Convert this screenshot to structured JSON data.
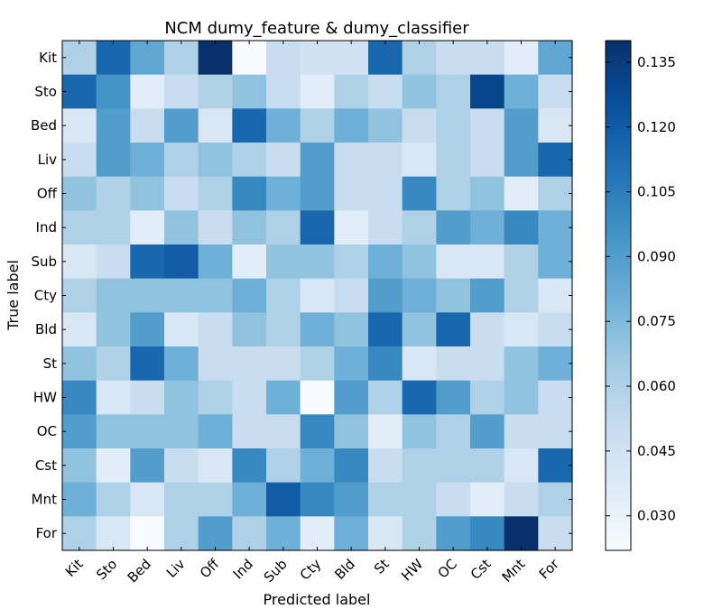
{
  "chart_data": {
    "type": "heatmap",
    "title": "NCM  dumy_feature & dumy_classifier",
    "xlabel": "Predicted label",
    "ylabel": "True label",
    "categories": [
      "Kit",
      "Sto",
      "Bed",
      "Liv",
      "Off",
      "Ind",
      "Sub",
      "Cty",
      "Bld",
      "St",
      "HW",
      "OC",
      "Cst",
      "Mnt",
      "For"
    ],
    "colorbar": {
      "min": 0.022,
      "max": 0.14,
      "ticks": [
        "0.030",
        "0.045",
        "0.060",
        "0.075",
        "0.090",
        "0.105",
        "0.120",
        "0.135"
      ],
      "colormap": "Blues"
    },
    "values": [
      [
        0.06,
        0.115,
        0.085,
        0.06,
        0.14,
        0.022,
        0.05,
        0.045,
        0.045,
        0.115,
        0.06,
        0.05,
        0.05,
        0.035,
        0.085
      ],
      [
        0.115,
        0.095,
        0.035,
        0.05,
        0.06,
        0.07,
        0.05,
        0.035,
        0.06,
        0.05,
        0.07,
        0.06,
        0.13,
        0.08,
        0.05
      ],
      [
        0.04,
        0.09,
        0.05,
        0.09,
        0.04,
        0.115,
        0.08,
        0.06,
        0.08,
        0.07,
        0.05,
        0.06,
        0.05,
        0.09,
        0.04
      ],
      [
        0.05,
        0.09,
        0.08,
        0.06,
        0.07,
        0.06,
        0.05,
        0.09,
        0.05,
        0.05,
        0.04,
        0.06,
        0.05,
        0.09,
        0.115
      ],
      [
        0.07,
        0.06,
        0.07,
        0.05,
        0.06,
        0.1,
        0.08,
        0.09,
        0.05,
        0.05,
        0.1,
        0.06,
        0.07,
        0.035,
        0.06
      ],
      [
        0.06,
        0.06,
        0.035,
        0.07,
        0.05,
        0.07,
        0.06,
        0.115,
        0.035,
        0.05,
        0.06,
        0.09,
        0.08,
        0.1,
        0.08
      ],
      [
        0.04,
        0.05,
        0.115,
        0.12,
        0.08,
        0.035,
        0.07,
        0.07,
        0.06,
        0.08,
        0.07,
        0.04,
        0.04,
        0.06,
        0.08
      ],
      [
        0.06,
        0.07,
        0.07,
        0.07,
        0.07,
        0.08,
        0.06,
        0.04,
        0.05,
        0.09,
        0.08,
        0.07,
        0.09,
        0.06,
        0.04
      ],
      [
        0.04,
        0.07,
        0.09,
        0.04,
        0.05,
        0.07,
        0.06,
        0.08,
        0.07,
        0.115,
        0.07,
        0.115,
        0.05,
        0.04,
        0.05
      ],
      [
        0.07,
        0.06,
        0.115,
        0.08,
        0.05,
        0.05,
        0.05,
        0.06,
        0.08,
        0.1,
        0.04,
        0.05,
        0.05,
        0.07,
        0.08
      ],
      [
        0.1,
        0.04,
        0.05,
        0.07,
        0.06,
        0.05,
        0.08,
        0.022,
        0.09,
        0.06,
        0.115,
        0.09,
        0.06,
        0.07,
        0.05
      ],
      [
        0.09,
        0.07,
        0.07,
        0.07,
        0.08,
        0.05,
        0.05,
        0.1,
        0.07,
        0.035,
        0.07,
        0.06,
        0.09,
        0.05,
        0.05
      ],
      [
        0.07,
        0.035,
        0.09,
        0.05,
        0.04,
        0.1,
        0.06,
        0.08,
        0.1,
        0.05,
        0.06,
        0.06,
        0.06,
        0.04,
        0.115
      ],
      [
        0.08,
        0.06,
        0.04,
        0.06,
        0.06,
        0.08,
        0.12,
        0.1,
        0.09,
        0.06,
        0.06,
        0.05,
        0.035,
        0.05,
        0.06
      ],
      [
        0.06,
        0.04,
        0.022,
        0.06,
        0.09,
        0.06,
        0.08,
        0.035,
        0.08,
        0.04,
        0.06,
        0.09,
        0.1,
        0.14,
        0.05
      ]
    ]
  }
}
